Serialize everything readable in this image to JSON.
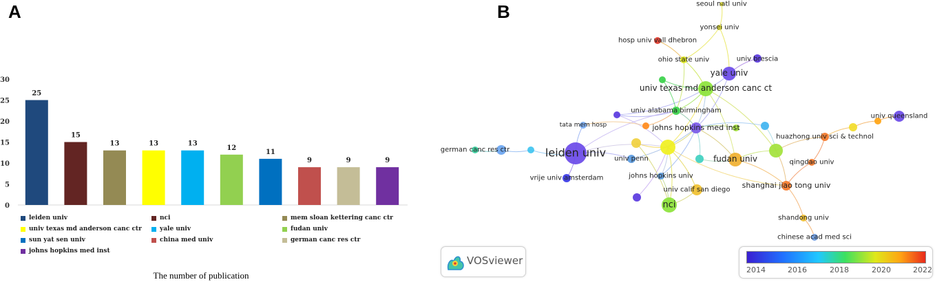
{
  "panel_a": {
    "letter": "A",
    "caption": "The number of publication",
    "chart_data": {
      "type": "bar",
      "title": "",
      "xlabel": "The number of publication",
      "ylabel": "",
      "ylim": [
        0,
        30
      ],
      "yticks": [
        0,
        5,
        10,
        15,
        20,
        25,
        30
      ],
      "grid": false,
      "legend_position": "bottom",
      "categories": [
        "leiden univ",
        "nci",
        "mem sloan kettering canc ctr",
        "univ texas md anderson canc ctr",
        "yale univ",
        "fudan univ",
        "sun yat sen univ",
        "china med univ",
        "german canc res ctr",
        "johns hopkins med inst"
      ],
      "values": [
        25,
        15,
        13,
        13,
        13,
        12,
        11,
        9,
        9,
        9
      ],
      "colors": [
        "#1f497d",
        "#632523",
        "#948a54",
        "#ffff00",
        "#00b0f0",
        "#92d050",
        "#0070c0",
        "#c0504d",
        "#c4bd97",
        "#7030a0"
      ]
    }
  },
  "panel_b": {
    "letter": "B",
    "logo_text": "VOSviewer",
    "colorbar": {
      "ticks": [
        "2014",
        "2016",
        "2018",
        "2020",
        "2022"
      ],
      "colors": [
        "#3a1fd1",
        "#2070ff",
        "#20c8ff",
        "#3ce060",
        "#dfe81a",
        "#ffa414",
        "#e82a1c"
      ]
    },
    "labels": {
      "seoul": "seoul natl univ",
      "yonsei": "yonsei univ",
      "hosp_vall": "hosp univ vall dhebron",
      "brescia": "univ brescia",
      "ohio": "ohio state univ",
      "yale": "yale univ",
      "mdanderson": "univ texas md anderson canc ct",
      "alabama": "univ alabama birmingham",
      "queensland": "univ queensland",
      "tata": "tata mem hosp",
      "jhmi": "johns hopkins med inst",
      "huazhong": "huazhong univ sci & technol",
      "german": "german canc res ctr",
      "leiden": "leiden univ",
      "penn": "univ penn",
      "fudan": "fudan univ",
      "qingdao": "qingdao univ",
      "jhu": "johns hopkins univ",
      "vrije": "vrije univ amsterdam",
      "shanghai": "shanghai jiao tong univ",
      "ucsd": "univ calif san diego",
      "nci": "nci",
      "shandong": "shandong univ",
      "cas": "chinese acad med sci"
    }
  }
}
